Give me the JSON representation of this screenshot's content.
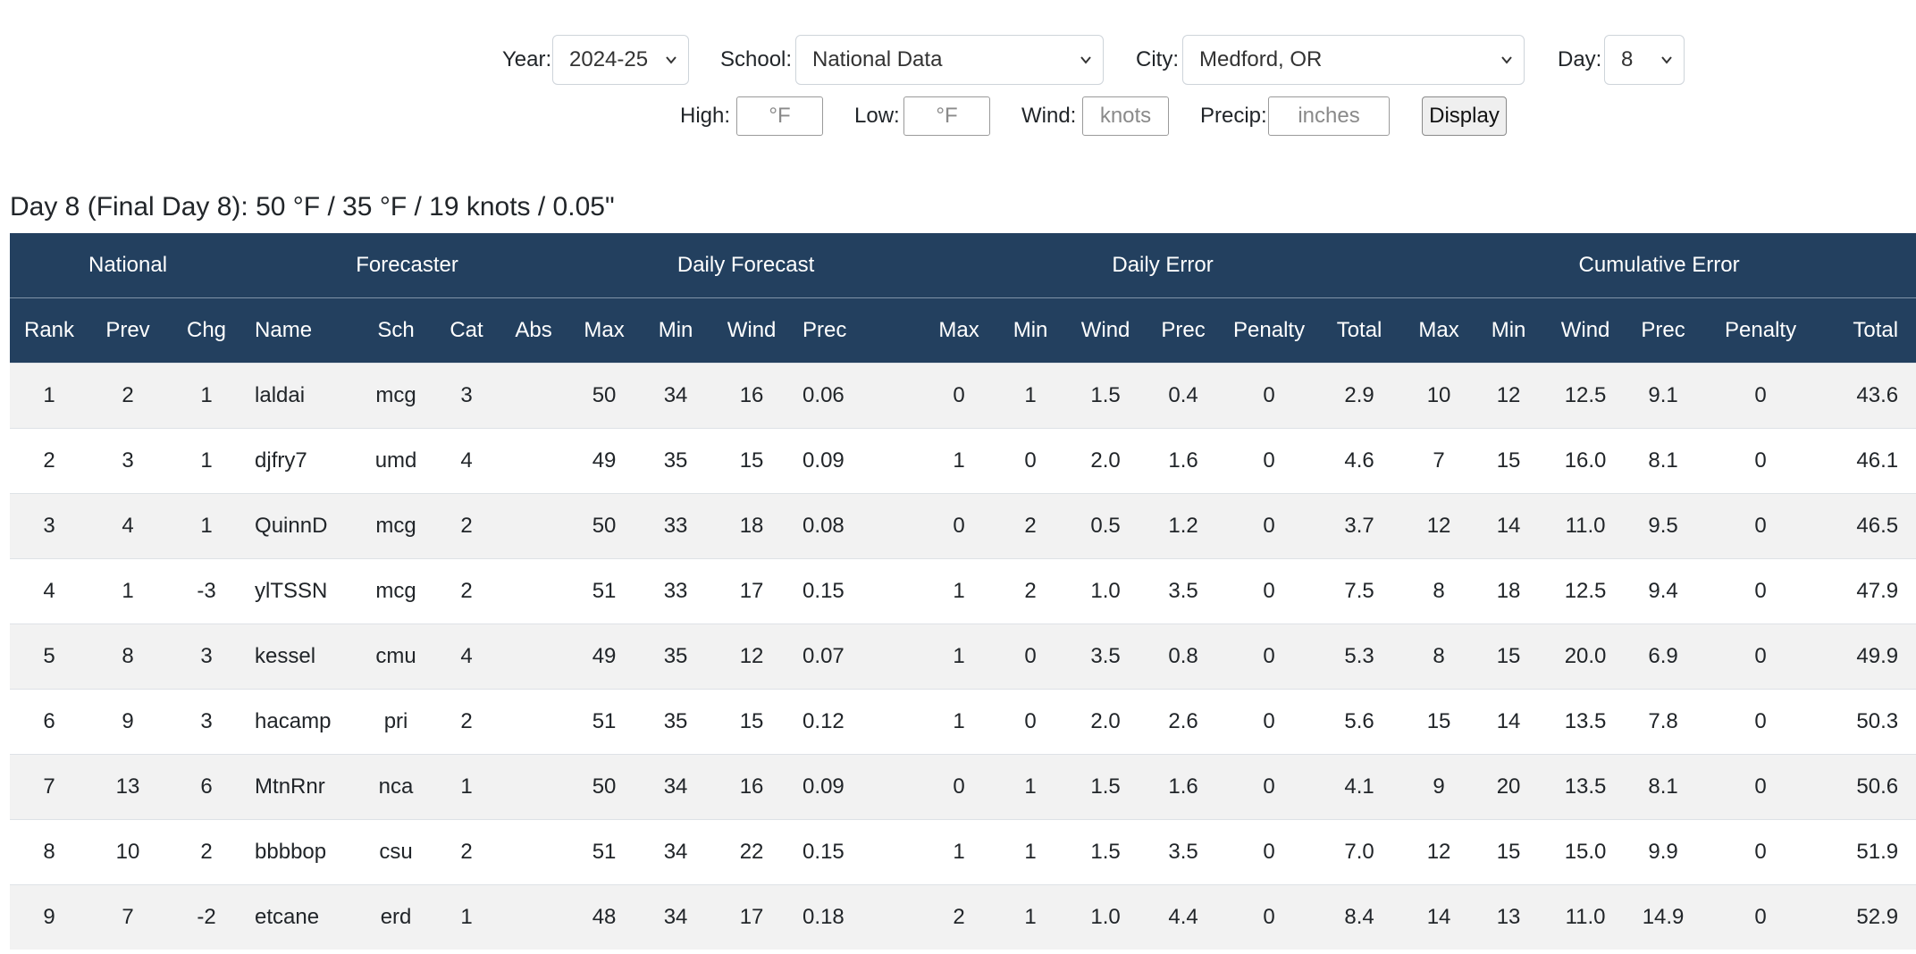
{
  "controls": {
    "year": {
      "label": "Year:",
      "value": "2024-25"
    },
    "school": {
      "label": "School:",
      "value": "National Data"
    },
    "city": {
      "label": "City:",
      "value": "Medford, OR"
    },
    "day": {
      "label": "Day:",
      "value": "8"
    },
    "high": {
      "label": "High:",
      "placeholder": "°F"
    },
    "low": {
      "label": "Low:",
      "placeholder": "°F"
    },
    "wind": {
      "label": "Wind:",
      "placeholder": "knots"
    },
    "precip": {
      "label": "Precip:",
      "placeholder": "inches"
    },
    "display_label": "Display"
  },
  "summary": "Day 8 (Final Day 8): 50 °F / 35 °F / 19 knots / 0.05\"",
  "table": {
    "groups": [
      "National",
      "Forecaster",
      "Daily Forecast",
      "Daily Error",
      "Cumulative Error"
    ],
    "columns": [
      "Rank",
      "Prev",
      "Chg",
      "Name",
      "Sch",
      "Cat",
      "Abs",
      "Max",
      "Min",
      "Wind",
      "Prec",
      "Max",
      "Min",
      "Wind",
      "Prec",
      "Penalty",
      "Total",
      "Max",
      "Min",
      "Wind",
      "Prec",
      "Penalty",
      "Total"
    ],
    "rows": [
      [
        "1",
        "2",
        "1",
        "laldai",
        "mcg",
        "3",
        "",
        "50",
        "34",
        "16",
        "0.06",
        "0",
        "1",
        "1.5",
        "0.4",
        "0",
        "2.9",
        "10",
        "12",
        "12.5",
        "9.1",
        "0",
        "43.6"
      ],
      [
        "2",
        "3",
        "1",
        "djfry7",
        "umd",
        "4",
        "",
        "49",
        "35",
        "15",
        "0.09",
        "1",
        "0",
        "2.0",
        "1.6",
        "0",
        "4.6",
        "7",
        "15",
        "16.0",
        "8.1",
        "0",
        "46.1"
      ],
      [
        "3",
        "4",
        "1",
        "QuinnD",
        "mcg",
        "2",
        "",
        "50",
        "33",
        "18",
        "0.08",
        "0",
        "2",
        "0.5",
        "1.2",
        "0",
        "3.7",
        "12",
        "14",
        "11.0",
        "9.5",
        "0",
        "46.5"
      ],
      [
        "4",
        "1",
        "-3",
        "ylTSSN",
        "mcg",
        "2",
        "",
        "51",
        "33",
        "17",
        "0.15",
        "1",
        "2",
        "1.0",
        "3.5",
        "0",
        "7.5",
        "8",
        "18",
        "12.5",
        "9.4",
        "0",
        "47.9"
      ],
      [
        "5",
        "8",
        "3",
        "kessel",
        "cmu",
        "4",
        "",
        "49",
        "35",
        "12",
        "0.07",
        "1",
        "0",
        "3.5",
        "0.8",
        "0",
        "5.3",
        "8",
        "15",
        "20.0",
        "6.9",
        "0",
        "49.9"
      ],
      [
        "6",
        "9",
        "3",
        "hacamp",
        "pri",
        "2",
        "",
        "51",
        "35",
        "15",
        "0.12",
        "1",
        "0",
        "2.0",
        "2.6",
        "0",
        "5.6",
        "15",
        "14",
        "13.5",
        "7.8",
        "0",
        "50.3"
      ],
      [
        "7",
        "13",
        "6",
        "MtnRnr",
        "nca",
        "1",
        "",
        "50",
        "34",
        "16",
        "0.09",
        "0",
        "1",
        "1.5",
        "1.6",
        "0",
        "4.1",
        "9",
        "20",
        "13.5",
        "8.1",
        "0",
        "50.6"
      ],
      [
        "8",
        "10",
        "2",
        "bbbbop",
        "csu",
        "2",
        "",
        "51",
        "34",
        "22",
        "0.15",
        "1",
        "1",
        "1.5",
        "3.5",
        "0",
        "7.0",
        "12",
        "15",
        "15.0",
        "9.9",
        "0",
        "51.9"
      ],
      [
        "9",
        "7",
        "-2",
        "etcane",
        "erd",
        "1",
        "",
        "48",
        "34",
        "17",
        "0.18",
        "2",
        "1",
        "1.0",
        "4.4",
        "0",
        "8.4",
        "14",
        "13",
        "11.0",
        "14.9",
        "0",
        "52.9"
      ]
    ]
  }
}
